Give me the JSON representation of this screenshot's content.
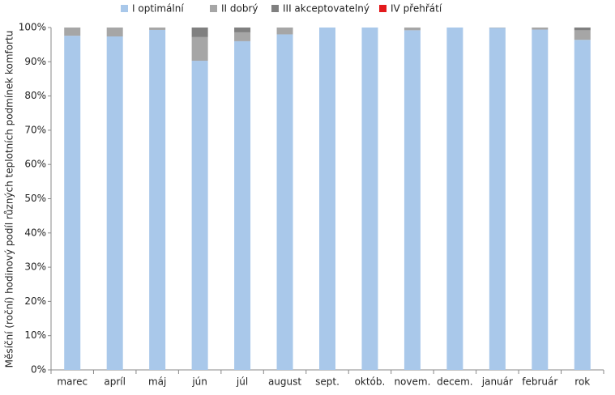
{
  "chart_data": {
    "type": "stacked_bar",
    "y_label": "Měsíční (roční) hodinový podíl různých teplotních podmínek komfortu",
    "categories": [
      "marec",
      "apríl",
      "máj",
      "jún",
      "júl",
      "august",
      "sept.",
      "októb.",
      "novem.",
      "decem.",
      "január",
      "február",
      "rok"
    ],
    "series": [
      {
        "name": "I optimální",
        "color": "#a9c8ea",
        "values": [
          97.6,
          97.4,
          99.3,
          90.3,
          96.0,
          98.0,
          100,
          100,
          99.2,
          100,
          99.9,
          99.4,
          96.4
        ]
      },
      {
        "name": "II dobrý",
        "color": "#a6a6a6",
        "values": [
          2.4,
          2.6,
          0.7,
          6.9,
          2.6,
          2.0,
          0,
          0,
          0.8,
          0,
          0.1,
          0.6,
          2.8
        ]
      },
      {
        "name": "III akceptovatelný",
        "color": "#808080",
        "values": [
          0,
          0,
          0,
          2.8,
          1.4,
          0,
          0,
          0,
          0,
          0,
          0,
          0,
          0.8
        ]
      },
      {
        "name": "IV přehřátí",
        "color": "#e3191c",
        "values": [
          0,
          0,
          0,
          0,
          0,
          0,
          0,
          0,
          0,
          0,
          0,
          0,
          0
        ]
      }
    ],
    "ylim": [
      0,
      100
    ],
    "yticks": [
      {
        "value": 0,
        "label": "0%"
      },
      {
        "value": 10,
        "label": "10%"
      },
      {
        "value": 20,
        "label": "20%"
      },
      {
        "value": 30,
        "label": "30%"
      },
      {
        "value": 40,
        "label": "40%"
      },
      {
        "value": 50,
        "label": "50%"
      },
      {
        "value": 60,
        "label": "60%"
      },
      {
        "value": 70,
        "label": "70%"
      },
      {
        "value": 80,
        "label": "80%"
      },
      {
        "value": 90,
        "label": "90%"
      },
      {
        "value": 100,
        "label": "100%"
      }
    ],
    "legend": "top"
  }
}
